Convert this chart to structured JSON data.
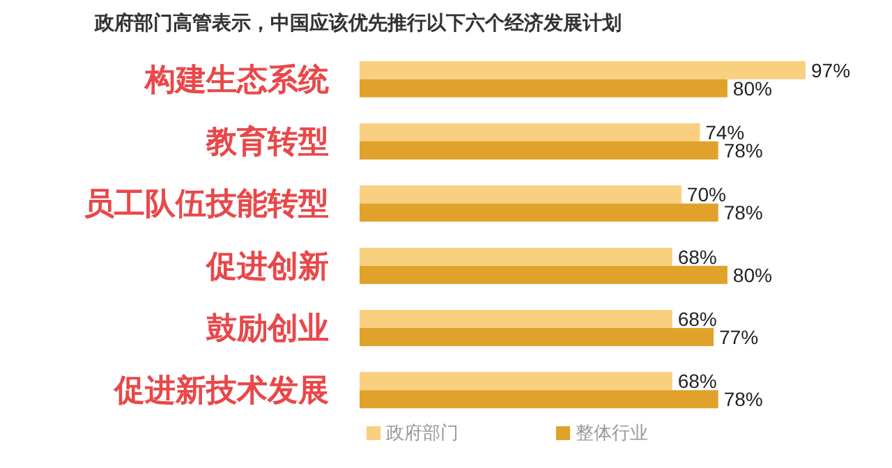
{
  "chart_data": {
    "type": "bar",
    "orientation": "horizontal",
    "title": "政府部门高管表示，中国应该优先推行以下六个经济发展计划",
    "categories": [
      "构建生态系统",
      "教育转型",
      "员工队伍技能转型",
      "促进创新",
      "鼓励创业",
      "促进新技术发展"
    ],
    "series": [
      {
        "name": "政府部门",
        "color": "#f9cf80",
        "values": [
          97,
          74,
          70,
          68,
          68,
          68
        ],
        "value_labels": [
          "97%",
          "74%",
          "70%",
          "68%",
          "68%",
          "68%"
        ]
      },
      {
        "name": "整体行业",
        "color": "#e0a22a",
        "values": [
          80,
          78,
          78,
          80,
          77,
          78
        ],
        "value_labels": [
          "80%",
          "78%",
          "78%",
          "80%",
          "77%",
          "78%"
        ]
      }
    ],
    "tick_labels": "y",
    "legend": "bottom"
  }
}
